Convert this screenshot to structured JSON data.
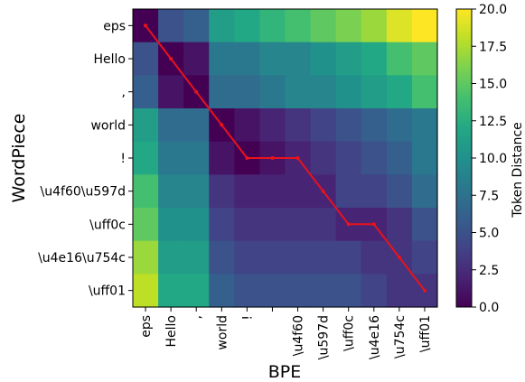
{
  "chart_data": {
    "type": "heatmap",
    "title": "",
    "xlabel": "BPE",
    "ylabel": "WordPiece",
    "x_categories": [
      "eps",
      "Hello",
      ",",
      "world",
      "!",
      " ",
      "\\u4f60",
      "\\u597d",
      "\\uff0c",
      "\\u4e16",
      "\\u754c",
      "\\uff01"
    ],
    "y_categories": [
      "eps",
      "Hello",
      ",",
      "world",
      "!",
      "\\u4f60\\u597d",
      "\\uff0c",
      "\\u4e16\\u754c",
      "\\uff01"
    ],
    "values": [
      [
        0,
        5,
        6,
        11,
        12,
        13,
        14,
        15,
        16,
        17,
        19,
        20
      ],
      [
        5,
        0,
        1,
        8,
        8,
        9,
        9,
        10,
        11,
        12,
        14,
        15
      ],
      [
        6,
        1,
        0,
        7,
        7,
        8,
        9,
        9,
        10,
        11,
        12,
        14
      ],
      [
        11,
        7,
        7,
        0,
        1,
        2,
        3,
        4,
        5,
        6,
        7,
        8
      ],
      [
        12,
        8,
        8,
        1,
        0,
        1,
        2,
        3,
        4,
        5,
        6,
        8
      ],
      [
        14,
        9,
        9,
        3,
        2,
        2,
        2,
        2,
        4,
        4,
        5,
        7
      ],
      [
        15,
        10,
        10,
        4,
        3,
        3,
        3,
        3,
        2,
        2,
        3,
        5
      ],
      [
        17,
        11,
        11,
        5,
        4,
        4,
        4,
        4,
        4,
        3,
        3,
        4
      ],
      [
        18,
        12,
        12,
        6,
        5,
        5,
        5,
        5,
        5,
        4,
        3,
        3
      ]
    ],
    "colorbar": {
      "label": "Token Distance",
      "min": 0,
      "max": 20,
      "ticks": [
        "0.0",
        "2.5",
        "5.0",
        "7.5",
        "10.0",
        "12.5",
        "15.0",
        "17.5",
        "20.0"
      ],
      "colormap": "viridis"
    },
    "path": {
      "color": "#e8131b",
      "points": [
        [
          0,
          0
        ],
        [
          1,
          1
        ],
        [
          2,
          2
        ],
        [
          3,
          3
        ],
        [
          4,
          4
        ],
        [
          5,
          4
        ],
        [
          6,
          4
        ],
        [
          7,
          5
        ],
        [
          8,
          6
        ],
        [
          9,
          6
        ],
        [
          10,
          7
        ],
        [
          11,
          8
        ]
      ]
    },
    "grid": false
  }
}
